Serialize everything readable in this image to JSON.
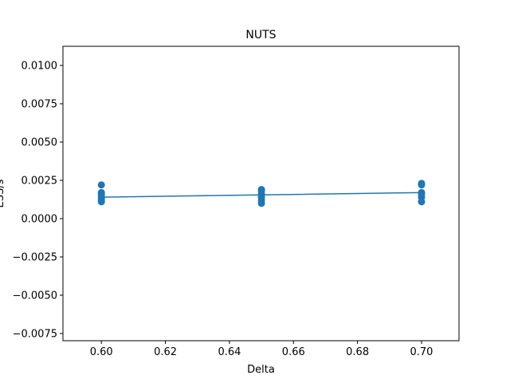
{
  "chart_data": {
    "type": "scatter",
    "title": "NUTS",
    "xlabel": "Delta",
    "ylabel": "ESS/s",
    "xlim": [
      0.588,
      0.7117
    ],
    "ylim": [
      -0.00797,
      0.01125
    ],
    "xticks": [
      {
        "value": 0.6,
        "label": "0.60"
      },
      {
        "value": 0.62,
        "label": "0.62"
      },
      {
        "value": 0.64,
        "label": "0.64"
      },
      {
        "value": 0.66,
        "label": "0.66"
      },
      {
        "value": 0.68,
        "label": "0.68"
      },
      {
        "value": 0.7,
        "label": "0.70"
      }
    ],
    "yticks": [
      {
        "value": -0.0075,
        "label": "−0.0075"
      },
      {
        "value": -0.005,
        "label": "−0.0050"
      },
      {
        "value": -0.0025,
        "label": "−0.0025"
      },
      {
        "value": 0,
        "label": "0.0000"
      },
      {
        "value": 0.0025,
        "label": "0.0025"
      },
      {
        "value": 0.005,
        "label": "0.0050"
      },
      {
        "value": 0.0075,
        "label": "0.0075"
      },
      {
        "value": 0.01,
        "label": "0.0100"
      }
    ],
    "series": [
      {
        "style": "markers",
        "color": "#1f77b4",
        "x": [
          0.6,
          0.6,
          0.6,
          0.6,
          0.6,
          0.6,
          0.6,
          0.65,
          0.65,
          0.65,
          0.65,
          0.65,
          0.65,
          0.7,
          0.7,
          0.7,
          0.7,
          0.7,
          0.7
        ],
        "values": [
          0.0022,
          0.0017,
          0.0016,
          0.0015,
          0.0013,
          0.0012,
          0.0011,
          0.0019,
          0.0018,
          0.0016,
          0.0014,
          0.0012,
          0.001,
          0.0023,
          0.0022,
          0.0017,
          0.0016,
          0.0014,
          0.0011
        ]
      },
      {
        "style": "line",
        "color": "#1f77b4",
        "x": [
          0.6,
          0.65,
          0.7
        ],
        "values": [
          0.0014,
          0.00155,
          0.0017
        ]
      }
    ]
  }
}
